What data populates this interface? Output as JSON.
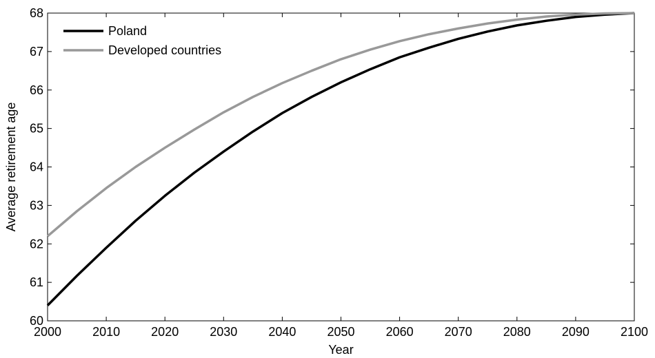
{
  "chart_data": {
    "type": "line",
    "title": "",
    "xlabel": "Year",
    "ylabel": "Average retirement age",
    "xlim": [
      2000,
      2100
    ],
    "ylim": [
      60,
      68
    ],
    "xticks": [
      2000,
      2010,
      2020,
      2030,
      2040,
      2050,
      2060,
      2070,
      2080,
      2090,
      2100
    ],
    "yticks": [
      60,
      61,
      62,
      63,
      64,
      65,
      66,
      67,
      68
    ],
    "grid": false,
    "legend_position": "top-left",
    "x": [
      2000,
      2005,
      2010,
      2015,
      2020,
      2025,
      2030,
      2035,
      2040,
      2045,
      2050,
      2055,
      2060,
      2065,
      2070,
      2075,
      2080,
      2085,
      2090,
      2095,
      2100
    ],
    "series": [
      {
        "name": "Poland",
        "color": "#000000",
        "values": [
          60.4,
          61.17,
          61.9,
          62.6,
          63.25,
          63.85,
          64.4,
          64.92,
          65.4,
          65.82,
          66.2,
          66.54,
          66.85,
          67.1,
          67.33,
          67.52,
          67.68,
          67.8,
          67.9,
          67.96,
          68.0
        ]
      },
      {
        "name": "Developed countries",
        "color": "#999999",
        "values": [
          62.2,
          62.85,
          63.45,
          64.0,
          64.5,
          64.97,
          65.42,
          65.82,
          66.18,
          66.5,
          66.8,
          67.05,
          67.27,
          67.45,
          67.6,
          67.73,
          67.83,
          67.91,
          67.96,
          67.99,
          68.0
        ]
      }
    ]
  }
}
